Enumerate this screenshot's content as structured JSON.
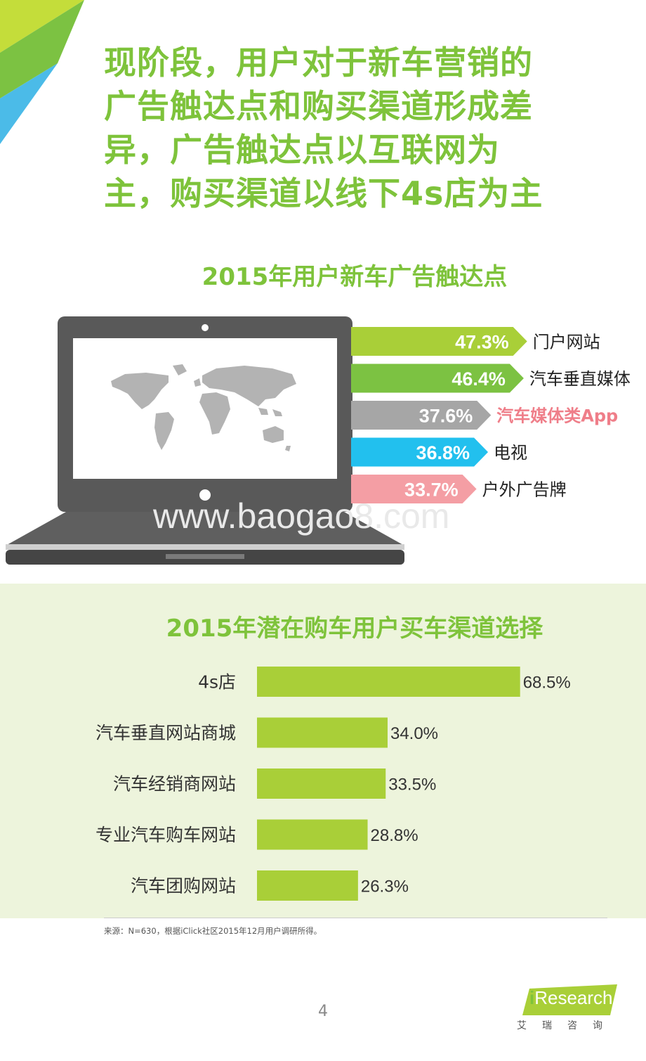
{
  "headline": {
    "lines": [
      "现阶段，用户对于新车营销的",
      "广告触达点和购买渠道形成差",
      "异，广告触达点以互联网为",
      "主，购买渠道以线下4s店为主"
    ]
  },
  "watermark": "www.baogao8.com",
  "chart_data": [
    {
      "type": "bar",
      "title": "2015年用户新车广告触达点",
      "categories": [
        "门户网站",
        "汽车垂直媒体",
        "汽车媒体类App",
        "电视",
        "户外广告牌"
      ],
      "values": [
        47.3,
        46.4,
        37.6,
        36.8,
        33.7
      ],
      "value_labels": [
        "47.3%",
        "46.4%",
        "37.6%",
        "36.8%",
        "33.7%"
      ],
      "bar_colors": [
        "#a9cf38",
        "#7cc242",
        "#a6a6a6",
        "#22c0ee",
        "#f49ea4"
      ],
      "highlight_label_color": "#ef7e89",
      "orientation": "horizontal"
    },
    {
      "type": "bar",
      "title": "2015年潜在购车用户买车渠道选择",
      "categories": [
        "4s店",
        "汽车垂直网站商城",
        "汽车经销商网站",
        "专业汽车购车网站",
        "汽车团购网站"
      ],
      "values": [
        68.5,
        34.0,
        33.5,
        28.8,
        26.3
      ],
      "value_labels": [
        "68.5%",
        "34.0%",
        "33.5%",
        "28.8%",
        "26.3%"
      ],
      "bar_color": "#a9cf38",
      "orientation": "horizontal"
    }
  ],
  "footer": {
    "source": "来源：N=630，根据iClick社区2015年12月用户调研所得。",
    "page_number": "4"
  },
  "logo": {
    "mark": "i",
    "name": "Research",
    "cn": "艾瑞咨询"
  },
  "colors": {
    "brand_green": "#7ec33b",
    "panel_bg": "#edf4dc",
    "laptop_body": "#555555",
    "map_grey": "#b3b3b3"
  }
}
